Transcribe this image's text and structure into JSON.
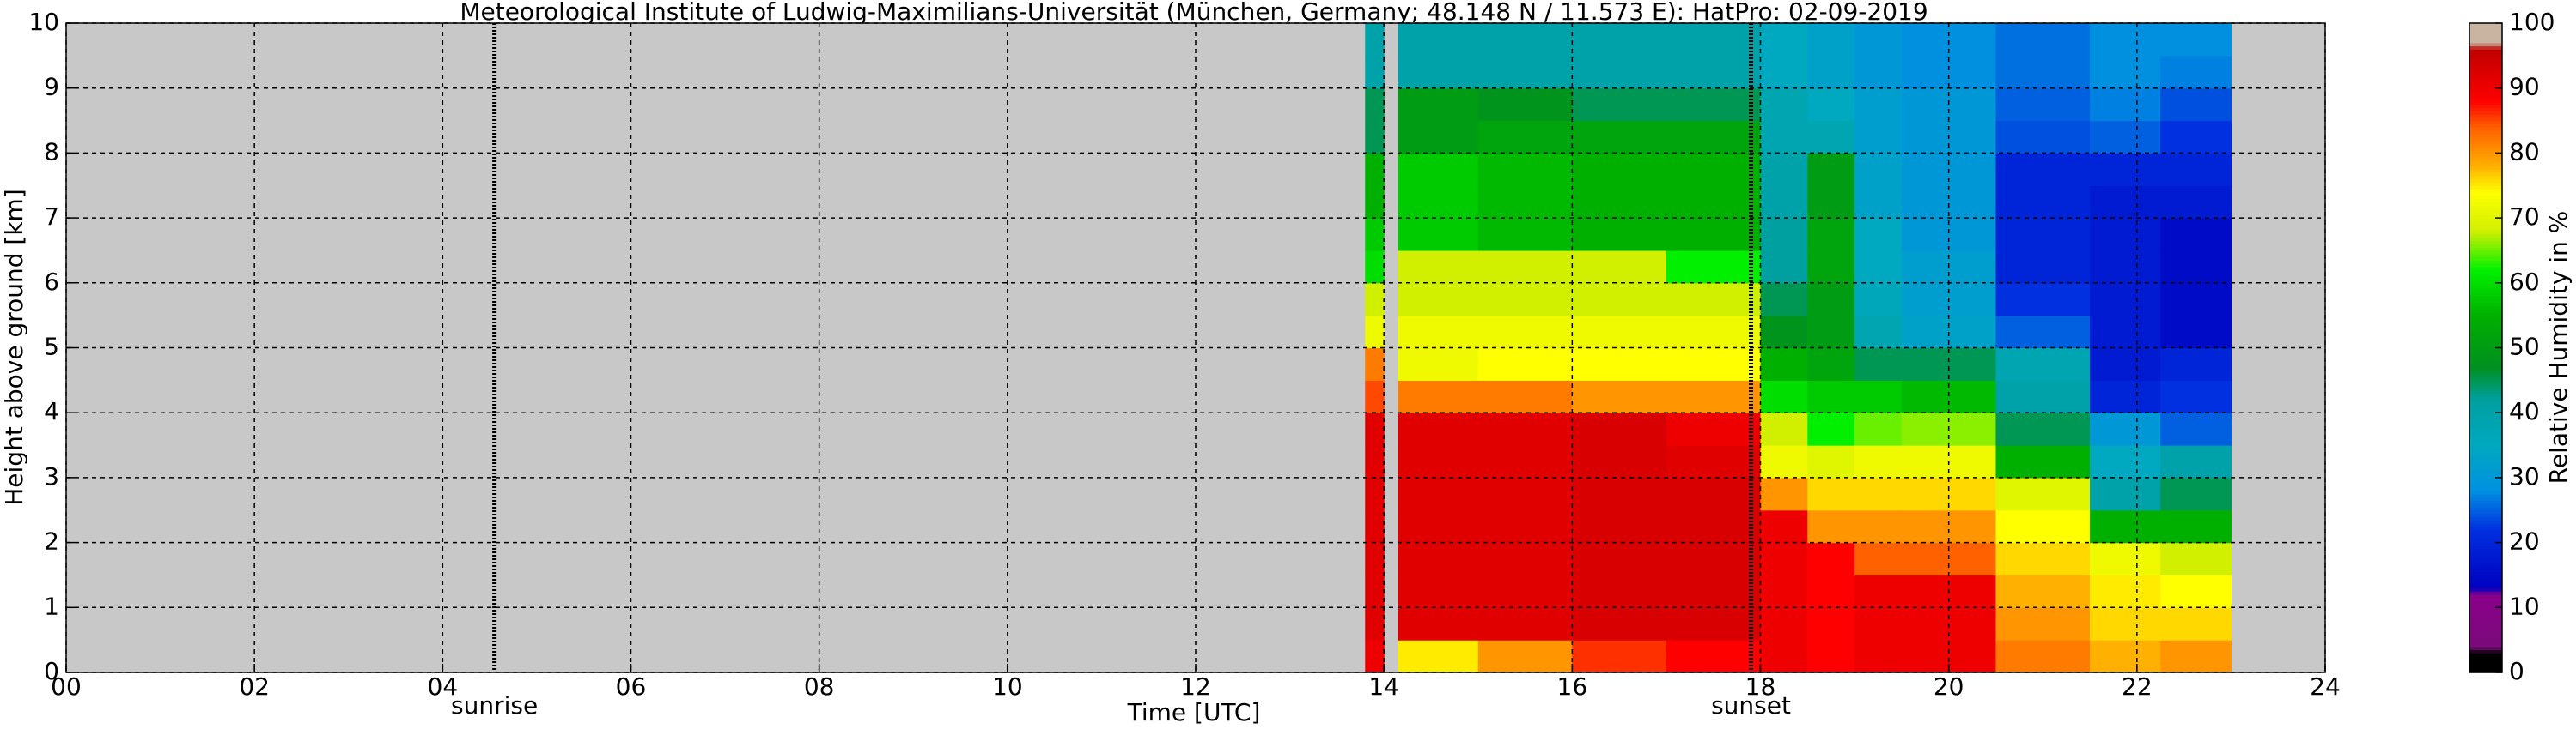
{
  "chart_data": {
    "type": "heatmap",
    "title": "Meteorological Institute of Ludwig-Maximilians-Universität (München, Germany; 48.148 N / 11.573 E):    HatPro: 02-09-2019",
    "x_label": "Time [UTC]",
    "y_label": "Height above ground [km]",
    "colorbar_label": "Relative Humidity in %",
    "xlim": [
      0,
      24
    ],
    "xticks": [
      {
        "value": 0,
        "label": "00"
      },
      {
        "value": 2,
        "label": "02"
      },
      {
        "value": 4,
        "label": "04"
      },
      {
        "value": 6,
        "label": "06"
      },
      {
        "value": 8,
        "label": "08"
      },
      10,
      12,
      14,
      16,
      18,
      20,
      22,
      24
    ],
    "ylim": [
      0,
      10
    ],
    "yticks": [
      0,
      1,
      2,
      3,
      4,
      5,
      6,
      7,
      8,
      9,
      10
    ],
    "clim": [
      0,
      100
    ],
    "cticks": [
      0,
      10,
      20,
      30,
      40,
      50,
      60,
      70,
      80,
      90,
      100
    ],
    "grid": true,
    "background": "#c8c8c8",
    "annotations": [
      {
        "label": "sunrise",
        "x": 4.55
      },
      {
        "label": "sunset",
        "x": 17.9
      }
    ],
    "colormap": [
      [
        0,
        "#000000"
      ],
      [
        3,
        "#000000"
      ],
      [
        4,
        "#7a0a7a"
      ],
      [
        12,
        "#8a008a"
      ],
      [
        13,
        "#0000c0"
      ],
      [
        22,
        "#0030e0"
      ],
      [
        28,
        "#0090e0"
      ],
      [
        35,
        "#00a8c0"
      ],
      [
        42,
        "#00a0a0"
      ],
      [
        47,
        "#009020"
      ],
      [
        55,
        "#00b000"
      ],
      [
        62,
        "#00f000"
      ],
      [
        68,
        "#d0f000"
      ],
      [
        74,
        "#ffff00"
      ],
      [
        78,
        "#ffb000"
      ],
      [
        84,
        "#ff6000"
      ],
      [
        88,
        "#ff0000"
      ],
      [
        96,
        "#c00000"
      ],
      [
        97,
        "#c8b4a0"
      ],
      [
        100,
        "#c8b4a0"
      ]
    ],
    "xbins": [
      13.8,
      14.0,
      14.15,
      15,
      16,
      17,
      18,
      18.5,
      19,
      19.5,
      20.5,
      21.5,
      22.25,
      23
    ],
    "ybins": [
      0,
      0.5,
      1,
      1.5,
      2,
      2.5,
      3,
      3.5,
      4,
      4.5,
      5,
      5.5,
      6,
      6.5,
      7,
      7.5,
      8,
      8.5,
      9,
      9.5,
      10
    ],
    "values": [
      [
        90,
        92,
        92,
        92,
        92,
        92,
        92,
        92,
        85,
        82,
        72,
        68,
        60,
        58,
        55,
        55,
        45,
        45,
        40,
        40
      ],
      [
        null,
        null,
        null,
        null,
        null,
        null,
        null,
        null,
        null,
        null,
        null,
        null,
        null,
        null,
        null,
        null,
        null,
        null,
        null,
        null
      ],
      [
        75,
        92,
        92,
        92,
        92,
        92,
        92,
        92,
        82,
        72,
        72,
        68,
        68,
        58,
        58,
        58,
        50,
        50,
        40,
        40
      ],
      [
        80,
        92,
        92,
        92,
        92,
        92,
        92,
        92,
        82,
        74,
        72,
        68,
        68,
        56,
        56,
        56,
        52,
        48,
        40,
        40
      ],
      [
        86,
        93,
        93,
        93,
        93,
        93,
        93,
        93,
        80,
        74,
        72,
        68,
        68,
        55,
        55,
        55,
        52,
        45,
        40,
        40
      ],
      [
        88,
        93,
        93,
        93,
        93,
        93,
        92,
        90,
        80,
        74,
        72,
        68,
        62,
        55,
        55,
        55,
        52,
        45,
        40,
        40
      ],
      [
        90,
        90,
        90,
        90,
        90,
        80,
        72,
        68,
        60,
        55,
        48,
        45,
        42,
        42,
        40,
        40,
        38,
        38,
        35,
        35
      ],
      [
        88,
        88,
        88,
        88,
        80,
        76,
        70,
        62,
        58,
        52,
        50,
        50,
        52,
        52,
        50,
        50,
        38,
        35,
        33,
        33
      ],
      [
        90,
        90,
        90,
        84,
        80,
        76,
        72,
        65,
        58,
        45,
        38,
        36,
        35,
        35,
        33,
        33,
        32,
        32,
        30,
        30
      ],
      [
        90,
        90,
        90,
        84,
        80,
        76,
        72,
        66,
        56,
        45,
        33,
        32,
        32,
        30,
        30,
        30,
        30,
        30,
        28,
        28
      ],
      [
        82,
        80,
        78,
        76,
        74,
        70,
        55,
        45,
        40,
        38,
        25,
        22,
        20,
        20,
        20,
        20,
        24,
        25,
        26,
        26
      ],
      [
        78,
        76,
        75,
        72,
        55,
        40,
        35,
        30,
        20,
        18,
        18,
        18,
        18,
        18,
        18,
        20,
        25,
        27,
        28,
        28
      ],
      [
        80,
        76,
        74,
        68,
        55,
        45,
        40,
        25,
        22,
        20,
        15,
        15,
        15,
        15,
        18,
        20,
        22,
        24,
        27,
        28
      ]
    ]
  }
}
